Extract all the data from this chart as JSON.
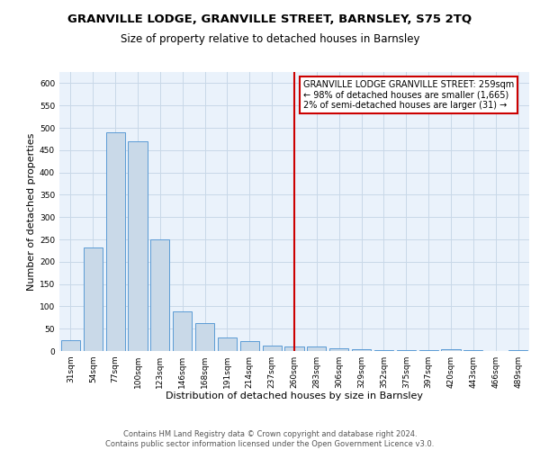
{
  "title": "GRANVILLE LODGE, GRANVILLE STREET, BARNSLEY, S75 2TQ",
  "subtitle": "Size of property relative to detached houses in Barnsley",
  "xlabel": "Distribution of detached houses by size in Barnsley",
  "ylabel": "Number of detached properties",
  "categories": [
    "31sqm",
    "54sqm",
    "77sqm",
    "100sqm",
    "123sqm",
    "146sqm",
    "168sqm",
    "191sqm",
    "214sqm",
    "237sqm",
    "260sqm",
    "283sqm",
    "306sqm",
    "329sqm",
    "352sqm",
    "375sqm",
    "397sqm",
    "420sqm",
    "443sqm",
    "466sqm",
    "489sqm"
  ],
  "values": [
    25,
    232,
    490,
    470,
    250,
    88,
    63,
    30,
    23,
    13,
    10,
    10,
    7,
    5,
    3,
    3,
    3,
    5,
    2,
    0,
    3
  ],
  "bar_color": "#c9d9e8",
  "bar_edge_color": "#5b9bd5",
  "grid_color": "#c8d8e8",
  "background_color": "#eaf2fb",
  "vline_x_index": 10,
  "vline_color": "#cc0000",
  "annotation_text": "GRANVILLE LODGE GRANVILLE STREET: 259sqm\n← 98% of detached houses are smaller (1,665)\n2% of semi-detached houses are larger (31) →",
  "annotation_box_color": "#ffffff",
  "annotation_edge_color": "#cc0000",
  "footer_text": "Contains HM Land Registry data © Crown copyright and database right 2024.\nContains public sector information licensed under the Open Government Licence v3.0.",
  "ylim": [
    0,
    625
  ],
  "title_fontsize": 9.5,
  "subtitle_fontsize": 8.5,
  "xlabel_fontsize": 8,
  "ylabel_fontsize": 8,
  "tick_fontsize": 6.5,
  "footer_fontsize": 6,
  "ann_fontsize": 7
}
